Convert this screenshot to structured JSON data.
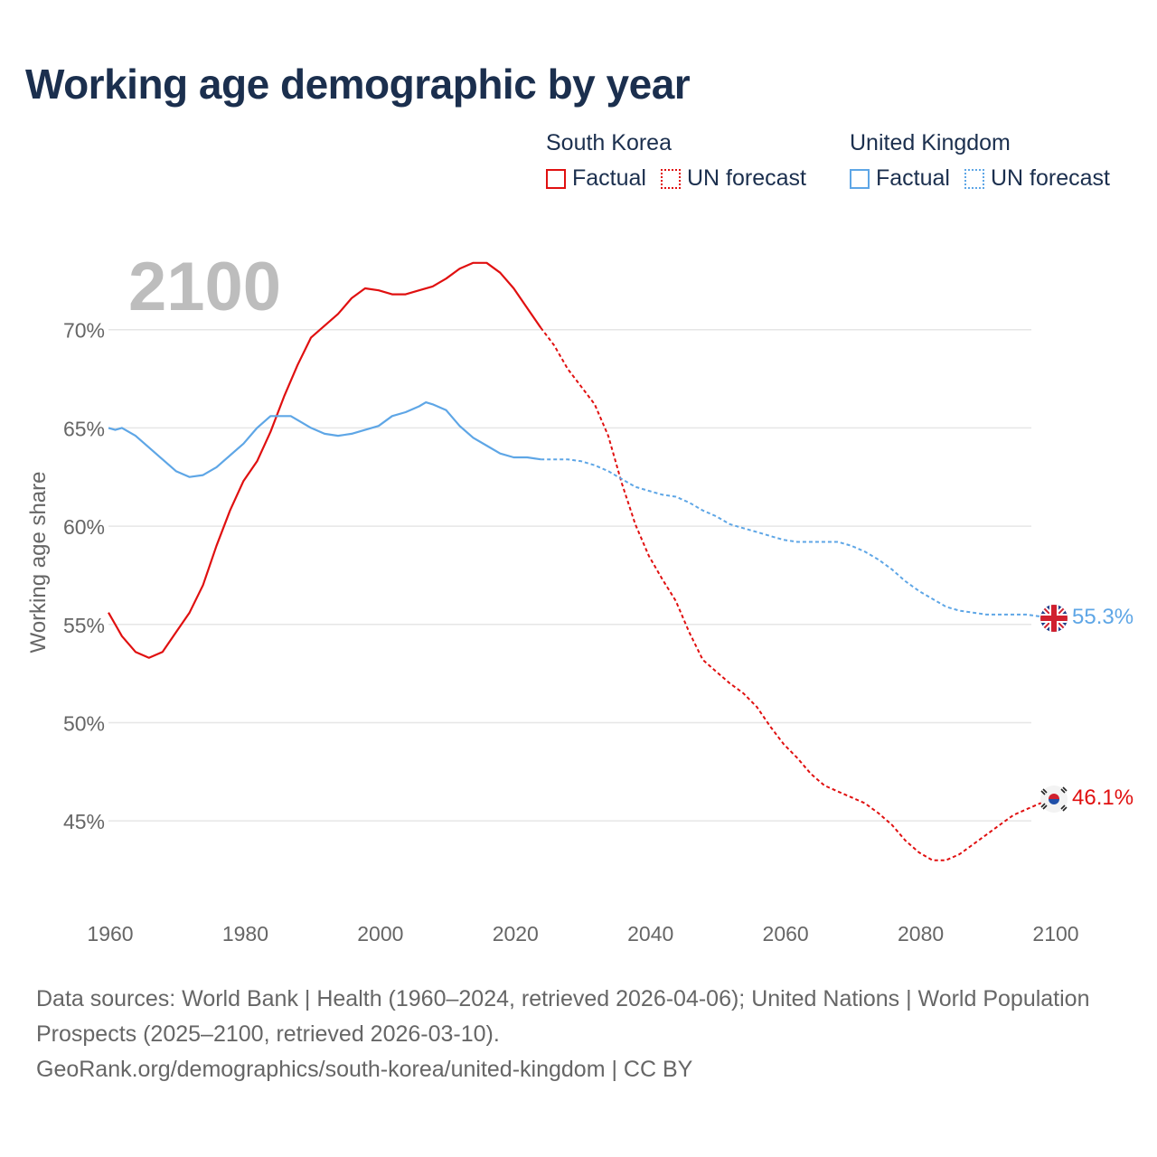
{
  "title": "Working age demographic by year",
  "legend": {
    "groups": [
      {
        "country": "South Korea",
        "color": "#e01010",
        "items": [
          {
            "label": "Factual",
            "style": "solid"
          },
          {
            "label": "UN forecast",
            "style": "dotted"
          }
        ]
      },
      {
        "country": "United Kingdom",
        "color": "#5ea6e6",
        "items": [
          {
            "label": "Factual",
            "style": "solid"
          },
          {
            "label": "UN forecast",
            "style": "dotted"
          }
        ]
      }
    ]
  },
  "year_watermark": "2100",
  "chart_data": {
    "type": "line",
    "ylabel": "Working age share",
    "xlim": [
      1960,
      2100
    ],
    "ylim": [
      40.5,
      75
    ],
    "x_ticks": [
      1960,
      1980,
      2000,
      2020,
      2040,
      2060,
      2080,
      2100
    ],
    "y_ticks": [
      45,
      50,
      55,
      60,
      65,
      70
    ],
    "y_tick_labels": [
      "45%",
      "50%",
      "55%",
      "60%",
      "65%",
      "70%"
    ],
    "series": [
      {
        "name": "South Korea",
        "color": "#e01010",
        "end_label": "46.1%",
        "flag_icon": "south-korea-flag-icon",
        "factual": [
          [
            1960,
            55.6
          ],
          [
            1962,
            54.4
          ],
          [
            1964,
            53.6
          ],
          [
            1966,
            53.3
          ],
          [
            1968,
            53.6
          ],
          [
            1970,
            54.6
          ],
          [
            1972,
            55.6
          ],
          [
            1974,
            57.0
          ],
          [
            1976,
            59.0
          ],
          [
            1978,
            60.8
          ],
          [
            1980,
            62.3
          ],
          [
            1982,
            63.3
          ],
          [
            1984,
            64.8
          ],
          [
            1986,
            66.6
          ],
          [
            1988,
            68.2
          ],
          [
            1990,
            69.6
          ],
          [
            1992,
            70.2
          ],
          [
            1994,
            70.8
          ],
          [
            1996,
            71.6
          ],
          [
            1998,
            72.1
          ],
          [
            2000,
            72.0
          ],
          [
            2002,
            71.8
          ],
          [
            2004,
            71.8
          ],
          [
            2006,
            72.0
          ],
          [
            2008,
            72.2
          ],
          [
            2010,
            72.6
          ],
          [
            2012,
            73.1
          ],
          [
            2014,
            73.4
          ],
          [
            2016,
            73.4
          ],
          [
            2018,
            72.9
          ],
          [
            2020,
            72.1
          ],
          [
            2022,
            71.1
          ],
          [
            2024,
            70.1
          ]
        ],
        "forecast": [
          [
            2024,
            70.1
          ],
          [
            2026,
            69.2
          ],
          [
            2028,
            68.0
          ],
          [
            2030,
            67.1
          ],
          [
            2032,
            66.2
          ],
          [
            2034,
            64.6
          ],
          [
            2036,
            62.2
          ],
          [
            2038,
            60.1
          ],
          [
            2040,
            58.5
          ],
          [
            2042,
            57.3
          ],
          [
            2044,
            56.2
          ],
          [
            2046,
            54.6
          ],
          [
            2048,
            53.2
          ],
          [
            2050,
            52.6
          ],
          [
            2052,
            52.0
          ],
          [
            2054,
            51.5
          ],
          [
            2056,
            50.8
          ],
          [
            2058,
            49.8
          ],
          [
            2060,
            48.9
          ],
          [
            2062,
            48.2
          ],
          [
            2064,
            47.4
          ],
          [
            2066,
            46.8
          ],
          [
            2068,
            46.5
          ],
          [
            2070,
            46.2
          ],
          [
            2072,
            45.9
          ],
          [
            2074,
            45.4
          ],
          [
            2076,
            44.8
          ],
          [
            2078,
            44.0
          ],
          [
            2080,
            43.4
          ],
          [
            2082,
            43.0
          ],
          [
            2084,
            43.0
          ],
          [
            2086,
            43.3
          ],
          [
            2088,
            43.8
          ],
          [
            2090,
            44.3
          ],
          [
            2092,
            44.8
          ],
          [
            2094,
            45.3
          ],
          [
            2096,
            45.6
          ],
          [
            2098,
            45.9
          ],
          [
            2100,
            46.1
          ]
        ]
      },
      {
        "name": "United Kingdom",
        "color": "#5ea6e6",
        "end_label": "55.3%",
        "flag_icon": "united-kingdom-flag-icon",
        "factual": [
          [
            1960,
            65.0
          ],
          [
            1961,
            64.9
          ],
          [
            1962,
            65.0
          ],
          [
            1964,
            64.6
          ],
          [
            1966,
            64.0
          ],
          [
            1968,
            63.4
          ],
          [
            1970,
            62.8
          ],
          [
            1972,
            62.5
          ],
          [
            1974,
            62.6
          ],
          [
            1976,
            63.0
          ],
          [
            1978,
            63.6
          ],
          [
            1980,
            64.2
          ],
          [
            1982,
            65.0
          ],
          [
            1984,
            65.6
          ],
          [
            1986,
            65.6
          ],
          [
            1987,
            65.6
          ],
          [
            1988,
            65.4
          ],
          [
            1990,
            65.0
          ],
          [
            1992,
            64.7
          ],
          [
            1994,
            64.6
          ],
          [
            1996,
            64.7
          ],
          [
            1998,
            64.9
          ],
          [
            2000,
            65.1
          ],
          [
            2002,
            65.6
          ],
          [
            2004,
            65.8
          ],
          [
            2006,
            66.1
          ],
          [
            2007,
            66.3
          ],
          [
            2008,
            66.2
          ],
          [
            2010,
            65.9
          ],
          [
            2012,
            65.1
          ],
          [
            2014,
            64.5
          ],
          [
            2016,
            64.1
          ],
          [
            2018,
            63.7
          ],
          [
            2020,
            63.5
          ],
          [
            2022,
            63.5
          ],
          [
            2024,
            63.4
          ]
        ],
        "forecast": [
          [
            2024,
            63.4
          ],
          [
            2026,
            63.4
          ],
          [
            2028,
            63.4
          ],
          [
            2030,
            63.3
          ],
          [
            2032,
            63.1
          ],
          [
            2034,
            62.8
          ],
          [
            2036,
            62.4
          ],
          [
            2038,
            62.0
          ],
          [
            2040,
            61.8
          ],
          [
            2042,
            61.6
          ],
          [
            2044,
            61.5
          ],
          [
            2046,
            61.2
          ],
          [
            2048,
            60.8
          ],
          [
            2050,
            60.5
          ],
          [
            2052,
            60.1
          ],
          [
            2054,
            59.9
          ],
          [
            2056,
            59.7
          ],
          [
            2058,
            59.5
          ],
          [
            2060,
            59.3
          ],
          [
            2062,
            59.2
          ],
          [
            2064,
            59.2
          ],
          [
            2066,
            59.2
          ],
          [
            2068,
            59.2
          ],
          [
            2070,
            59.0
          ],
          [
            2072,
            58.7
          ],
          [
            2074,
            58.3
          ],
          [
            2076,
            57.8
          ],
          [
            2078,
            57.2
          ],
          [
            2080,
            56.7
          ],
          [
            2082,
            56.3
          ],
          [
            2084,
            55.9
          ],
          [
            2086,
            55.7
          ],
          [
            2088,
            55.6
          ],
          [
            2090,
            55.5
          ],
          [
            2092,
            55.5
          ],
          [
            2094,
            55.5
          ],
          [
            2096,
            55.5
          ],
          [
            2098,
            55.4
          ],
          [
            2100,
            55.3
          ]
        ]
      }
    ]
  },
  "footer": {
    "line1": "Data sources: World Bank | Health (1960–2024, retrieved 2026-04-06); United Nations | World Population Prospects (2025–2100, retrieved 2026-03-10).",
    "line2": "GeoRank.org/demographics/south-korea/united-kingdom | CC BY"
  }
}
